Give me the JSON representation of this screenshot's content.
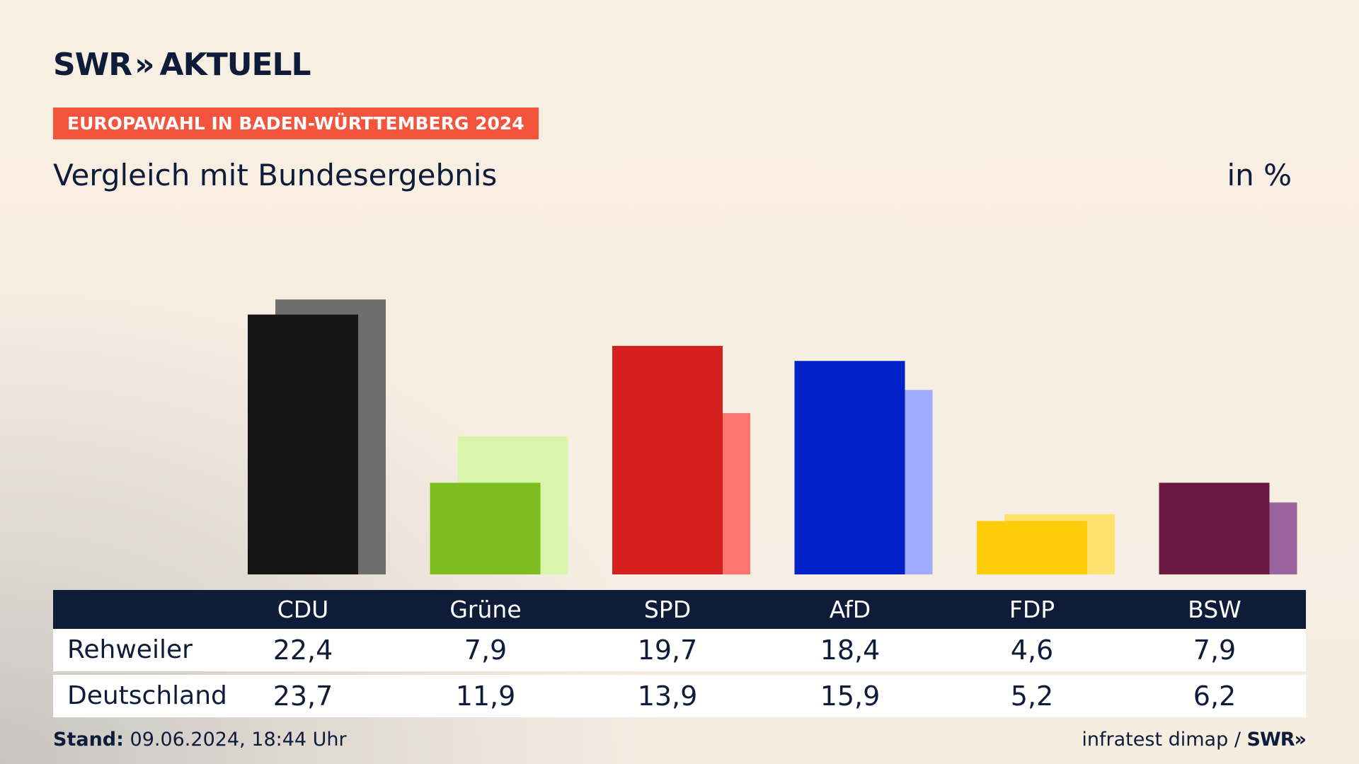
{
  "header": {
    "logo_text": "SWR",
    "logo_chevron": "»",
    "logo_suffix": "AKTUELL",
    "badge": "EUROPAWAHL IN BADEN-WÜRTTEMBERG 2024",
    "subtitle": "Vergleich mit Bundesergebnis",
    "unit": "in %"
  },
  "chart_data": {
    "type": "bar",
    "title": "Vergleich mit Bundesergebnis",
    "ylabel": "in %",
    "xlabel": "",
    "ylim": [
      0,
      25
    ],
    "grid": false,
    "categories": [
      "CDU",
      "Grüne",
      "SPD",
      "AfD",
      "FDP",
      "BSW"
    ],
    "series": [
      {
        "name": "Rehweiler",
        "values": [
          22.4,
          7.9,
          19.7,
          18.4,
          4.6,
          7.9
        ],
        "colors": [
          "#161616",
          "#7cbe1e",
          "#d61f1f",
          "#0022c8",
          "#ffcc0a",
          "#6b1940"
        ]
      },
      {
        "name": "Deutschland",
        "values": [
          23.7,
          11.9,
          13.9,
          15.9,
          5.2,
          6.2
        ],
        "colors": [
          "#6e6e6e",
          "#d9f5ab",
          "#ff7670",
          "#9eabff",
          "#ffe170",
          "#9a649e"
        ]
      }
    ]
  },
  "table": {
    "columns": [
      "CDU",
      "Grüne",
      "SPD",
      "AfD",
      "FDP",
      "BSW"
    ],
    "rows": [
      {
        "label": "Rehweiler",
        "values": [
          "22,4",
          "7,9",
          "19,7",
          "18,4",
          "4,6",
          "7,9"
        ]
      },
      {
        "label": "Deutschland",
        "values": [
          "23,7",
          "11,9",
          "13,9",
          "15,9",
          "5,2",
          "6,2"
        ]
      }
    ]
  },
  "footer": {
    "stand_label": "Stand:",
    "stand_value": "09.06.2024, 18:44 Uhr",
    "source": "infratest dimap /",
    "source_logo": "SWR»"
  }
}
